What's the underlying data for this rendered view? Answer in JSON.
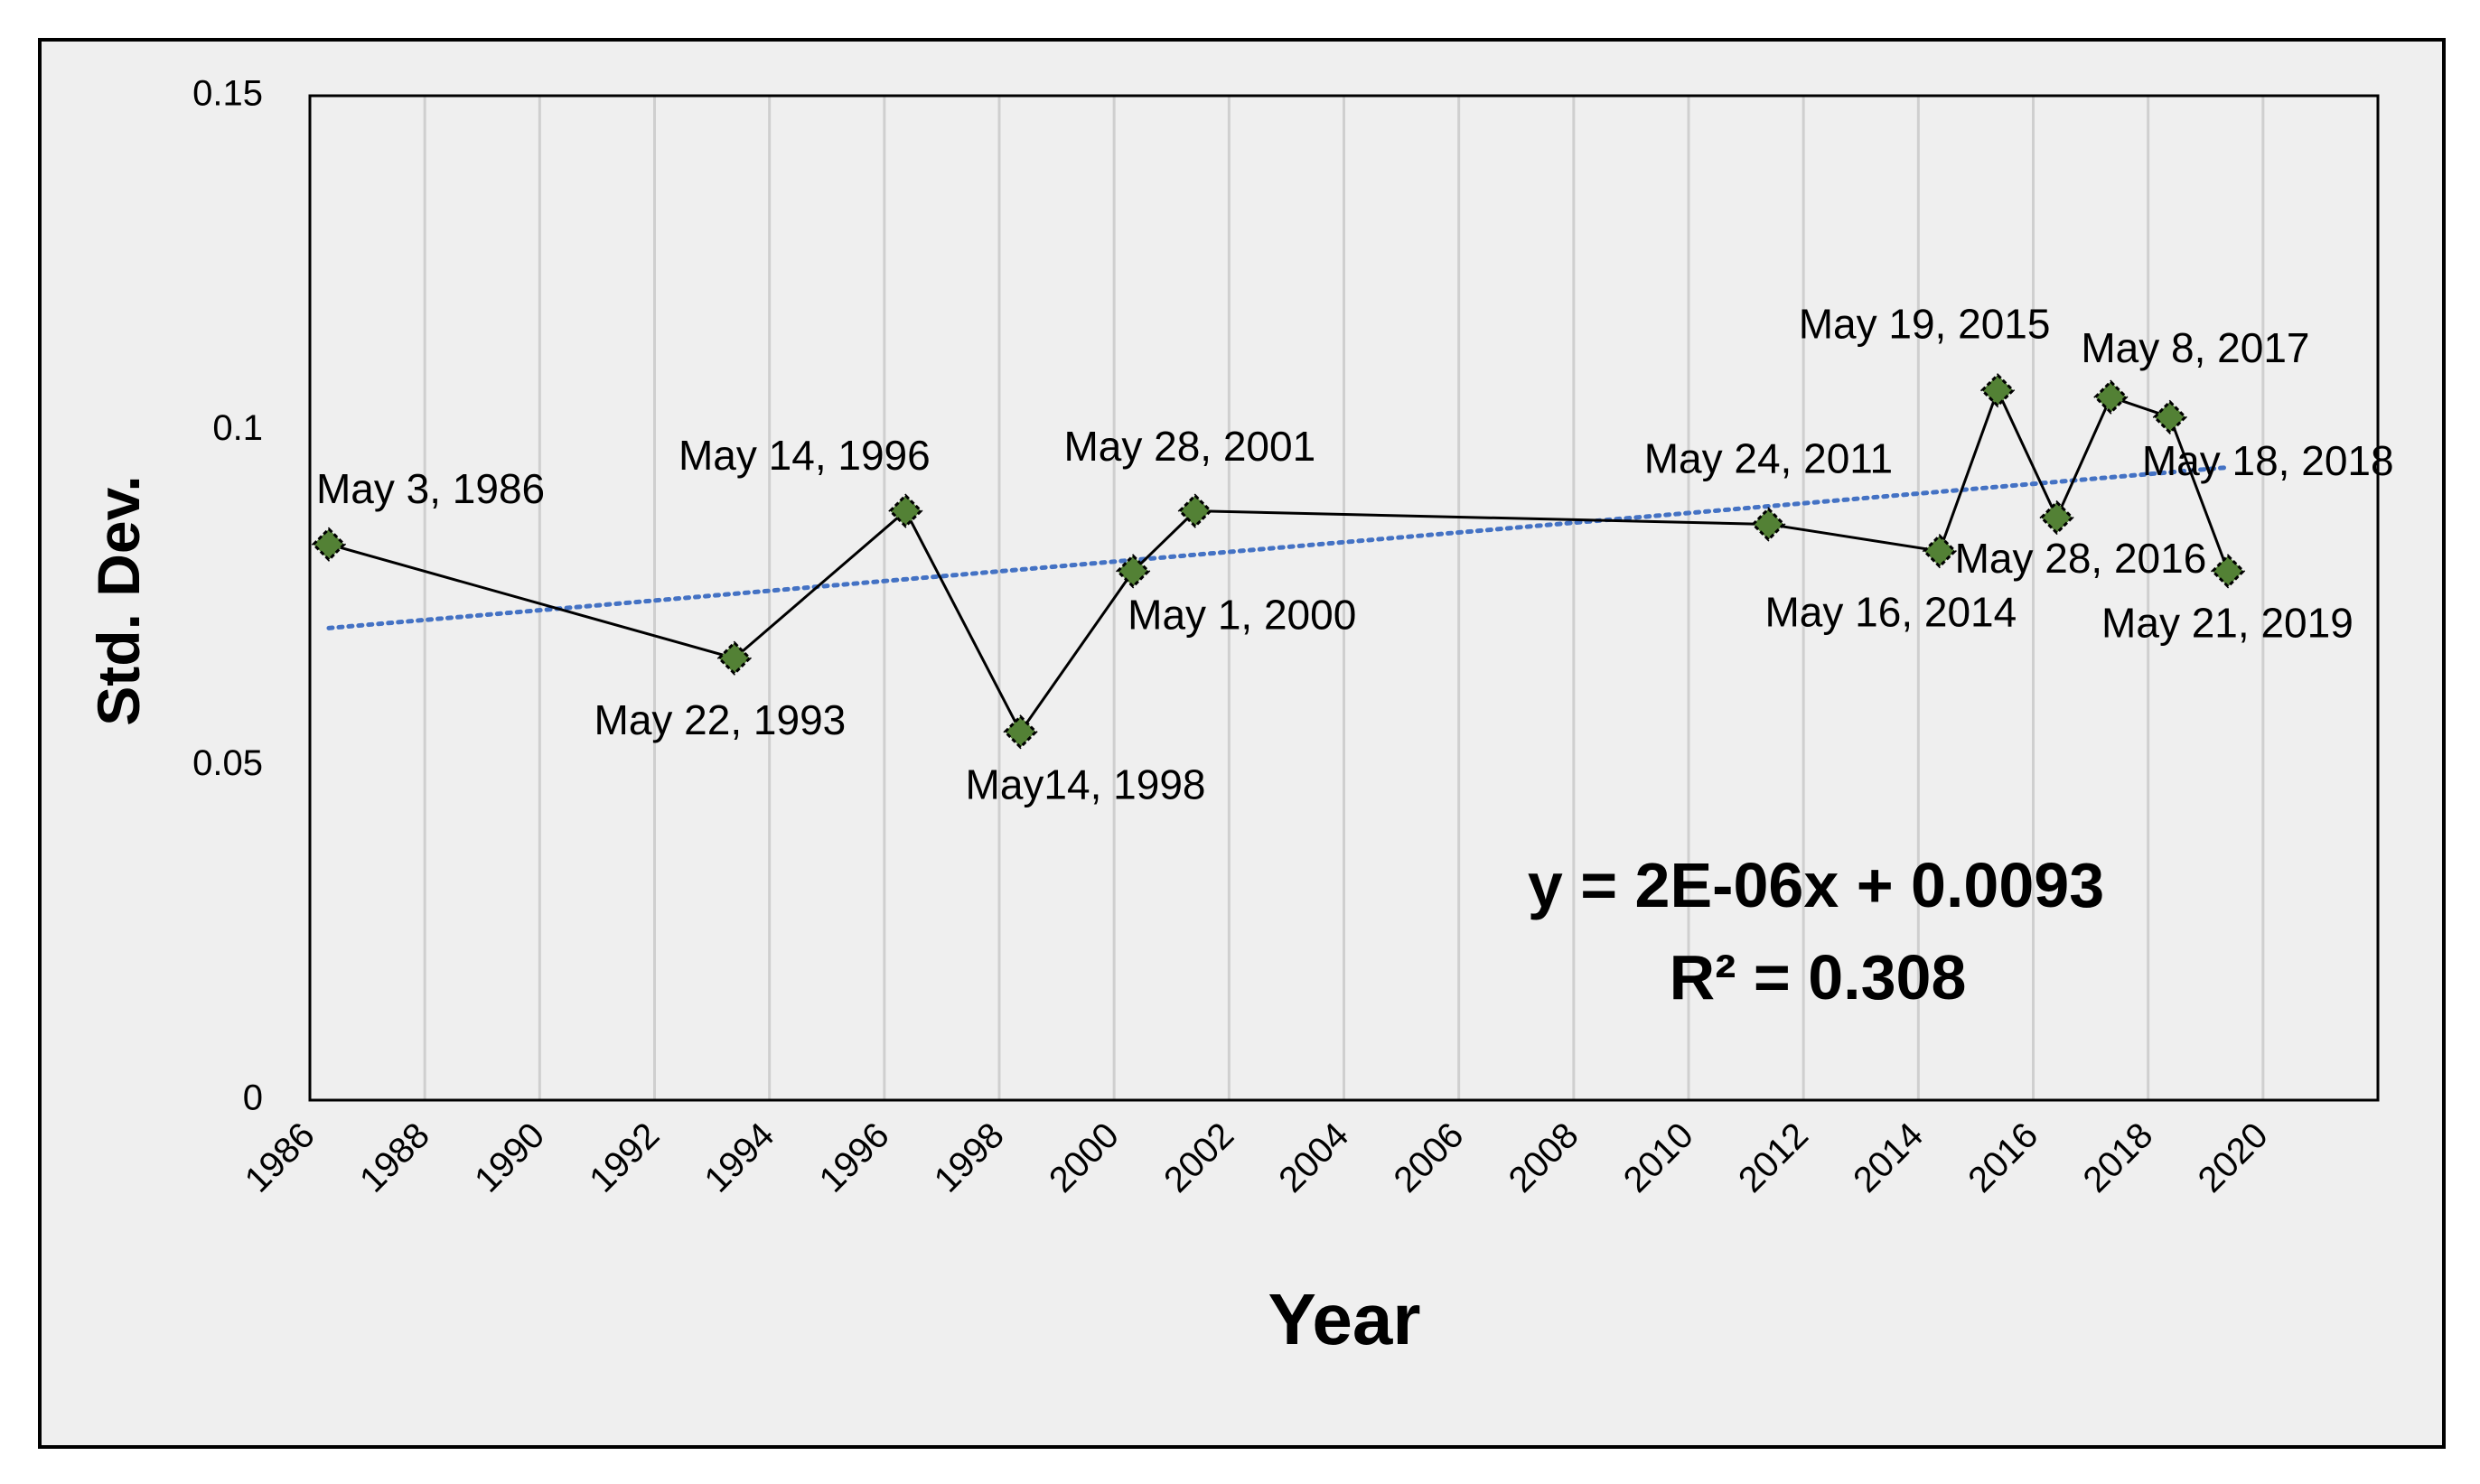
{
  "chart_data": {
    "type": "scatter",
    "xlabel": "Year",
    "ylabel": "Std. Dev.",
    "xlim": [
      1986,
      2022
    ],
    "ylim": [
      0,
      0.15
    ],
    "x_ticks": [
      "1986",
      "1988",
      "1990",
      "1992",
      "1994",
      "1996",
      "1998",
      "2000",
      "2002",
      "2004",
      "2006",
      "2008",
      "2010",
      "2012",
      "2014",
      "2016",
      "2018",
      "2020"
    ],
    "y_ticks": [
      "0",
      "0.05",
      "0.1",
      "0.15"
    ],
    "grid": "vertical",
    "background": "#efefef",
    "marker_color": "#538135",
    "line_color": "#000000",
    "trend_color": "#4472c4",
    "series": [
      {
        "values": [
          {
            "x": 1986.33,
            "y": 0.083,
            "label": "May 3, 1986"
          },
          {
            "x": 1993.39,
            "y": 0.066,
            "label": "May 22, 1993"
          },
          {
            "x": 1996.37,
            "y": 0.088,
            "label": "May 14, 1996"
          },
          {
            "x": 1998.37,
            "y": 0.055,
            "label": "May14, 1998"
          },
          {
            "x": 2000.33,
            "y": 0.079,
            "label": "May 1, 2000"
          },
          {
            "x": 2001.41,
            "y": 0.088,
            "label": "May 28, 2001"
          },
          {
            "x": 2011.39,
            "y": 0.086,
            "label": "May 24, 2011"
          },
          {
            "x": 2014.37,
            "y": 0.082,
            "label": "May 16, 2014"
          },
          {
            "x": 2015.38,
            "y": 0.106,
            "label": "May 19, 2015"
          },
          {
            "x": 2016.41,
            "y": 0.087,
            "label": "May 28, 2016"
          },
          {
            "x": 2017.35,
            "y": 0.105,
            "label": "May 8, 2017"
          },
          {
            "x": 2018.38,
            "y": 0.102,
            "label": "May 18, 2018"
          },
          {
            "x": 2019.39,
            "y": 0.079,
            "label": "May 21, 2019"
          }
        ]
      }
    ],
    "trendline": {
      "type": "linear",
      "equation": "y = 2E-06x + 0.0093",
      "r_squared": "R² = 0.308",
      "from": {
        "x": 1986.33,
        "y": 0.0705
      },
      "to": {
        "x": 2019.39,
        "y": 0.0945
      }
    }
  }
}
